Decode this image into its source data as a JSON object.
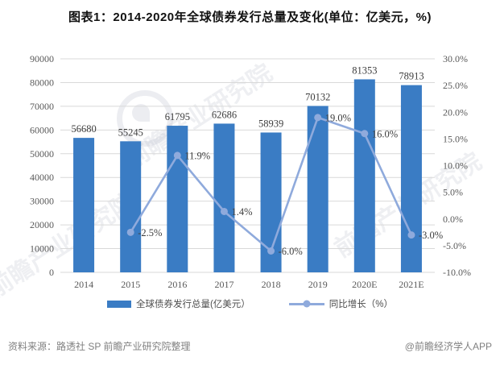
{
  "title": "图表1：2014-2020年全球债券发行总量及变化(单位：亿美元，%)",
  "chart_data": {
    "type": "bar",
    "title": "图表1：2014-2020年全球债券发行总量及变化(单位：亿美元，%)",
    "categories": [
      "2014",
      "2015",
      "2016",
      "2017",
      "2018",
      "2019",
      "2020E",
      "2021E"
    ],
    "series": [
      {
        "name": "全球债券发行总量(亿美元）",
        "type": "bar",
        "axis": "left",
        "color": "#3A7CC4",
        "values": [
          56680,
          55245,
          61795,
          62686,
          58939,
          70132,
          81353,
          78913
        ]
      },
      {
        "name": "同比增长（%）",
        "type": "line",
        "axis": "right",
        "color": "#8FAADC",
        "values": [
          null,
          -2.5,
          11.9,
          1.4,
          -6.0,
          19.0,
          16.0,
          -3.0
        ]
      }
    ],
    "point_labels": [
      "-2.5%",
      "11.9%",
      "1.4%",
      "-6.0%",
      "19.0%",
      "16.0%",
      "-3.0%"
    ],
    "left_axis": {
      "min": 0,
      "max": 90000,
      "step": 10000,
      "ticks": [
        "90000",
        "80000",
        "70000",
        "60000",
        "50000",
        "40000",
        "30000",
        "20000",
        "10000",
        "0"
      ]
    },
    "right_axis": {
      "min": -10,
      "max": 30,
      "step": 5,
      "ticks": [
        "30.0%",
        "25.0%",
        "20.0%",
        "15.0%",
        "10.0%",
        "5.0%",
        "0.0%",
        "-5.0%",
        "-10.0%"
      ]
    },
    "grid": true,
    "grid_color": "#D9D9D9",
    "legend_position": "bottom"
  },
  "watermark": {
    "text": "前瞻产业研究院"
  },
  "footer": {
    "source": "资料来源：路透社 SP 前瞻产业研究院整理",
    "brand": "@前瞻经济学人APP"
  }
}
